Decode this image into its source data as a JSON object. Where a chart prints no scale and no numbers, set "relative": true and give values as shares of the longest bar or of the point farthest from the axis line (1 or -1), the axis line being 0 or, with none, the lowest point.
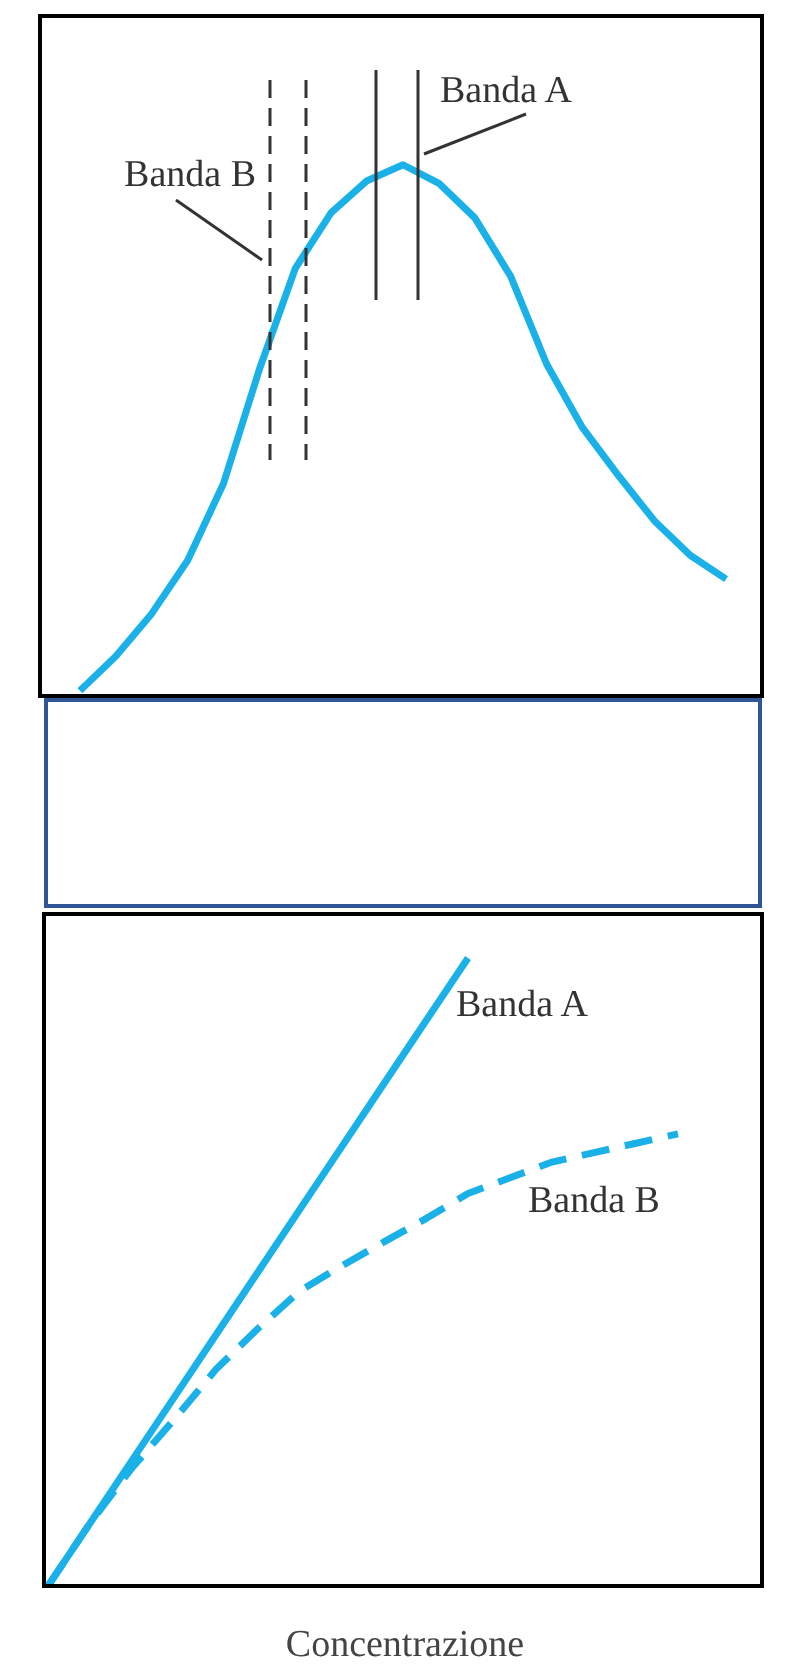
{
  "chart_data": [
    {
      "type": "line",
      "relative": true,
      "categories": [
        null,
        null,
        null,
        null,
        null,
        null,
        null,
        null,
        null,
        null,
        null,
        null,
        null,
        null,
        null,
        null,
        null,
        null,
        null,
        null,
        null
      ],
      "values": [
        null,
        0.01,
        0.075,
        0.155,
        0.255,
        0.4,
        0.615,
        0.805,
        0.91,
        0.97,
        1,
        0.965,
        0.9,
        0.79,
        0.625,
        0.505,
        0.415,
        0.33,
        0.265,
        0.22,
        null
      ],
      "color": "#1ab0e8",
      "annotations": [
        "Banda B",
        "Banda A"
      ]
    },
    {
      "type": "line",
      "relative": true,
      "xlabel": "Concentrazione",
      "categories": [
        null,
        null,
        null,
        null,
        null,
        null,
        null,
        null,
        null,
        null,
        null,
        null,
        null,
        null,
        null,
        null,
        null,
        null
      ],
      "series": [
        {
          "name": "Banda A",
          "color": "#1ab0e8",
          "line_style": "solid",
          "values": [
            0,
            0.1,
            0.2,
            0.3,
            0.4,
            0.5,
            0.6,
            0.7,
            0.8,
            0.9,
            1,
            null,
            null,
            null,
            null,
            null,
            null,
            null
          ]
        },
        {
          "name": "Banda B",
          "color": "#1ab0e8",
          "line_style": "dashed",
          "values": [
            0,
            0.1,
            0.188,
            0.265,
            0.345,
            0.41,
            0.47,
            0.51,
            0.548,
            0.585,
            0.625,
            0.65,
            0.675,
            0.69,
            0.705,
            0.72,
            null,
            null
          ]
        }
      ]
    }
  ]
}
